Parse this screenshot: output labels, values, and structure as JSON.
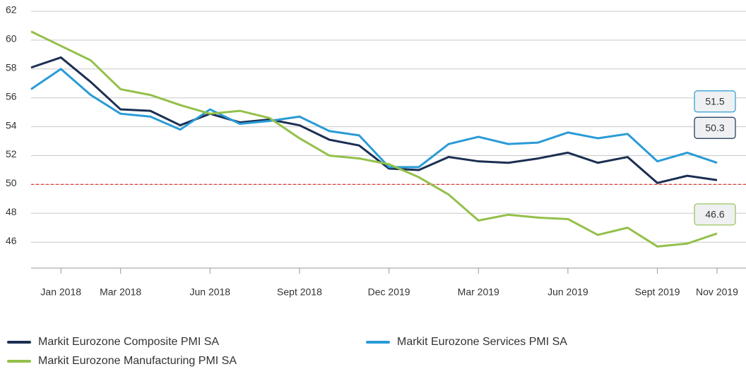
{
  "chart_data": {
    "type": "line",
    "categories": [
      null,
      "Jan 2018",
      null,
      "Mar 2018",
      null,
      null,
      "Jun 2018",
      null,
      null,
      "Sept 2018",
      null,
      null,
      "Dec 2019",
      null,
      null,
      "Mar 2019",
      null,
      null,
      "Jun 2019",
      null,
      null,
      "Sept 2019",
      null,
      "Nov 2019"
    ],
    "series": [
      {
        "name": "Markit Eurozone Composite PMI SA",
        "color": "#1b2f52",
        "values": [
          58.1,
          58.8,
          57.1,
          55.2,
          55.1,
          54.1,
          54.9,
          54.3,
          54.5,
          54.1,
          53.1,
          52.7,
          51.1,
          51.0,
          51.9,
          51.6,
          51.5,
          51.8,
          52.2,
          51.5,
          51.9,
          50.1,
          50.6,
          50.3
        ],
        "value_labels": [
          null,
          null,
          null,
          null,
          null,
          null,
          null,
          null,
          null,
          null,
          null,
          null,
          null,
          null,
          null,
          null,
          null,
          null,
          null,
          null,
          null,
          null,
          null,
          "50.3"
        ]
      },
      {
        "name": "Markit Eurozone Services PMI SA",
        "color": "#2a9bd6",
        "values": [
          56.6,
          58.0,
          56.2,
          54.9,
          54.7,
          53.8,
          55.2,
          54.2,
          54.4,
          54.7,
          53.7,
          53.4,
          51.2,
          51.2,
          52.8,
          53.3,
          52.8,
          52.9,
          53.6,
          53.2,
          53.5,
          51.6,
          52.2,
          51.5
        ],
        "value_labels": [
          null,
          null,
          null,
          null,
          null,
          null,
          null,
          null,
          null,
          null,
          null,
          null,
          null,
          null,
          null,
          null,
          null,
          null,
          null,
          null,
          null,
          null,
          null,
          "51.5"
        ]
      },
      {
        "name": "Markit Eurozone Manufacturing PMI SA",
        "color": "#93c04a",
        "values": [
          60.6,
          59.6,
          58.6,
          56.6,
          56.2,
          55.5,
          54.9,
          55.1,
          54.6,
          53.2,
          52.0,
          51.8,
          51.4,
          50.5,
          49.3,
          47.5,
          47.9,
          47.7,
          47.6,
          46.5,
          47.0,
          45.7,
          45.9,
          46.6
        ],
        "value_labels": [
          null,
          null,
          null,
          null,
          null,
          null,
          null,
          null,
          null,
          null,
          null,
          null,
          null,
          null,
          null,
          null,
          null,
          null,
          null,
          null,
          null,
          null,
          null,
          "46.6"
        ]
      }
    ],
    "ylim": [
      44.2,
      62
    ],
    "yticks": [
      46,
      48,
      50,
      52,
      54,
      56,
      58,
      60,
      62
    ],
    "grid": true,
    "reference_line": {
      "value": 50,
      "color": "#e03c31"
    },
    "legend": "bottom"
  }
}
